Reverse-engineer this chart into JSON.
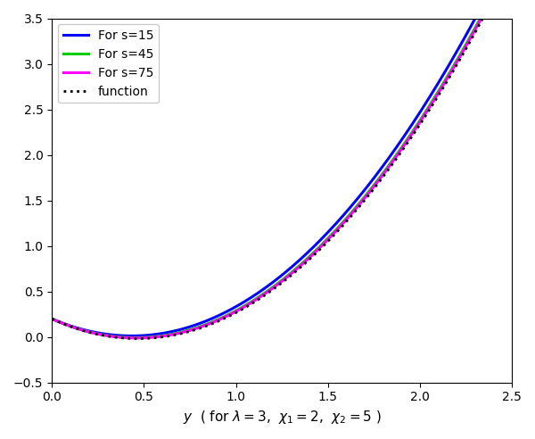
{
  "xlim": [
    0,
    2.5
  ],
  "ylim": [
    -0.5,
    3.5
  ],
  "xlabel": "y  ( for $\\lambda = 3$, $\\chi_1 = 2$, $\\chi_2 = 5$ )",
  "xticks": [
    0,
    0.5,
    1.0,
    1.5,
    2.0,
    2.5
  ],
  "yticks": [
    -0.5,
    0,
    0.5,
    1.0,
    1.5,
    2.0,
    2.5,
    3.0,
    3.5
  ],
  "s_values": [
    15,
    45,
    75
  ],
  "line_colors": [
    "#0000FF",
    "#00DD00",
    "#FF00FF"
  ],
  "func_color": "#000000",
  "lam": 3,
  "chi1": 2,
  "chi2": 5,
  "lw_curves": 2.2,
  "lw_func": 2.0,
  "n_points": 500
}
